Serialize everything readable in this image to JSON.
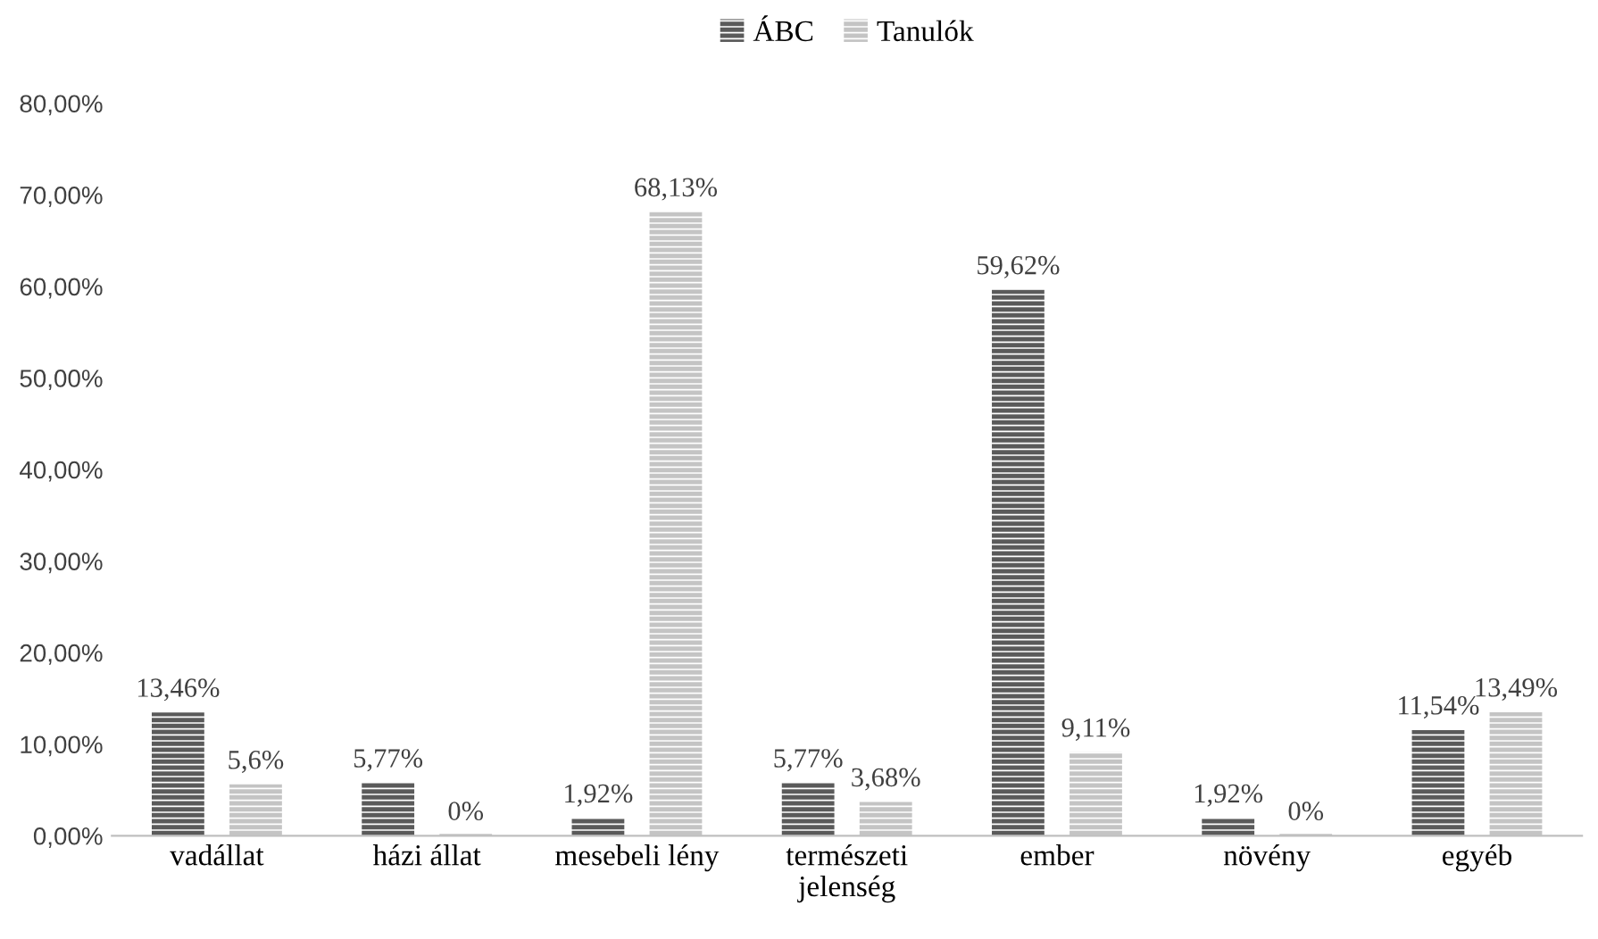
{
  "chart_data": {
    "type": "bar",
    "categories": [
      "vadállat",
      "házi állat",
      "mesebeli lény",
      "természeti\njelenség",
      "ember",
      "növény",
      "egyéb"
    ],
    "series": [
      {
        "name": "ÁBC",
        "color": "#5a5a5a",
        "values": [
          13.46,
          5.77,
          1.92,
          5.77,
          59.62,
          1.92,
          11.54
        ],
        "value_labels": [
          "13,46%",
          "5,77%",
          "1,92%",
          "5,77%",
          "59,62%",
          "1,92%",
          "11,54%"
        ]
      },
      {
        "name": "Tanulók",
        "color": "#c4c4c4",
        "values": [
          5.6,
          0,
          68.13,
          3.68,
          9.11,
          0,
          13.49
        ],
        "value_labels": [
          "5,6%",
          "0%",
          "68,13%",
          "3,68%",
          "9,11%",
          "0%",
          "13,49%"
        ]
      }
    ],
    "ylim": [
      0,
      80
    ],
    "yticks": [
      {
        "value": 0,
        "label": "0,00%"
      },
      {
        "value": 10,
        "label": "10,00%"
      },
      {
        "value": 20,
        "label": "20,00%"
      },
      {
        "value": 30,
        "label": "30,00%"
      },
      {
        "value": 40,
        "label": "40,00%"
      },
      {
        "value": 50,
        "label": "50,00%"
      },
      {
        "value": 60,
        "label": "60,00%"
      },
      {
        "value": 70,
        "label": "70,00%"
      },
      {
        "value": 80,
        "label": "80,00%"
      }
    ],
    "grid": false,
    "legend": "top"
  }
}
